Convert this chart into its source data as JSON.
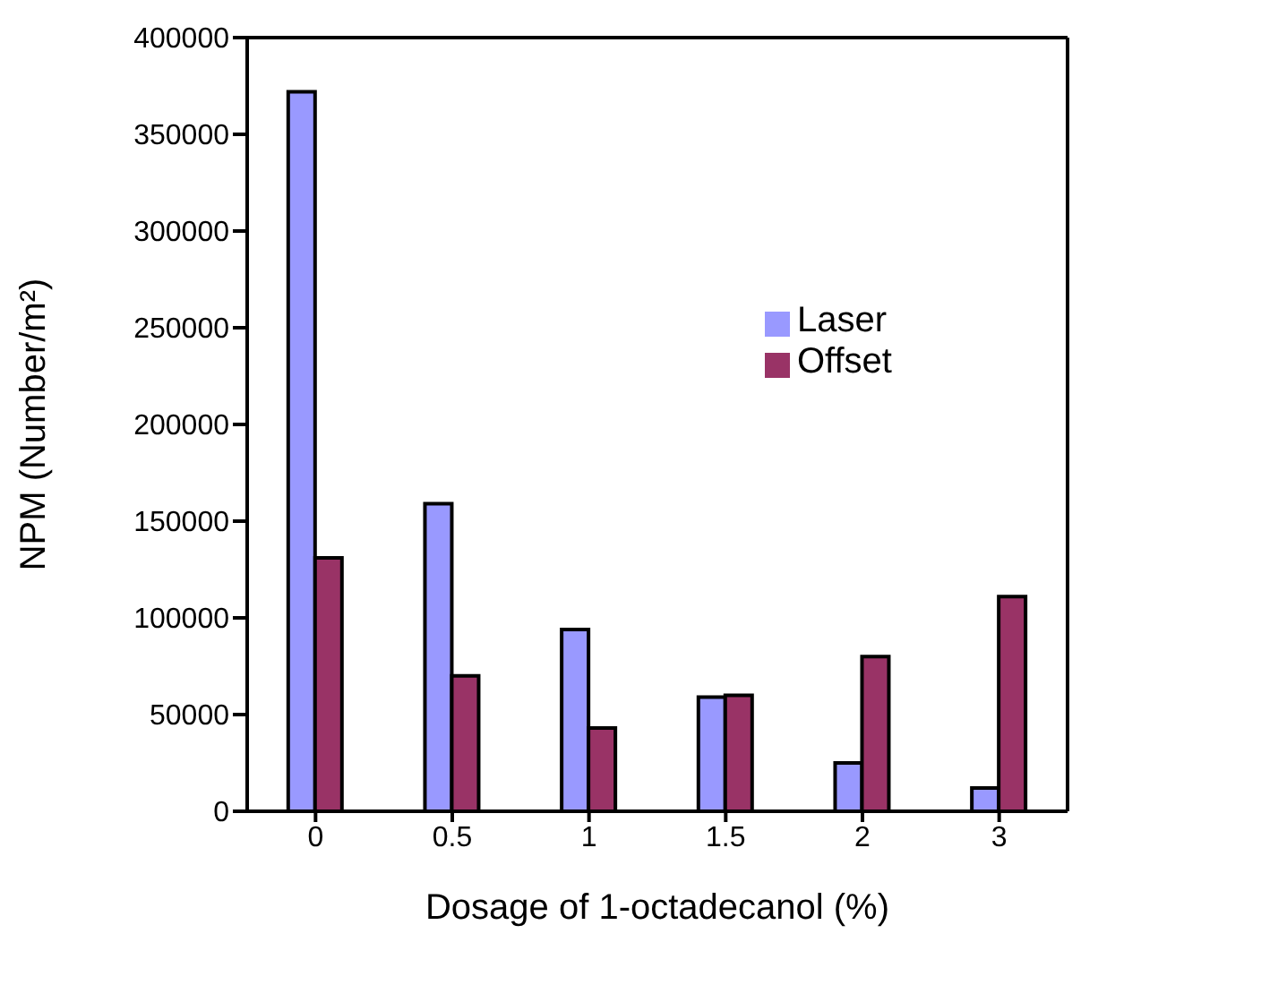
{
  "chart_data": {
    "type": "bar",
    "xlabel": "Dosage of 1-octadecanol (%)",
    "ylabel": "NPM (Number/m²)",
    "categories": [
      "0",
      "0.5",
      "1",
      "1.5",
      "2",
      "3"
    ],
    "series": [
      {
        "name": "Laser",
        "color": "#9999ff",
        "values": [
          372000,
          159000,
          94000,
          59000,
          25000,
          12000
        ]
      },
      {
        "name": "Offset",
        "color": "#993366",
        "values": [
          131000,
          70000,
          43000,
          60000,
          80000,
          111000
        ]
      }
    ],
    "ylim": [
      0,
      400000
    ],
    "yticks": [
      0,
      50000,
      100000,
      150000,
      200000,
      250000,
      300000,
      350000,
      400000
    ],
    "grid": false,
    "legend": "right"
  }
}
